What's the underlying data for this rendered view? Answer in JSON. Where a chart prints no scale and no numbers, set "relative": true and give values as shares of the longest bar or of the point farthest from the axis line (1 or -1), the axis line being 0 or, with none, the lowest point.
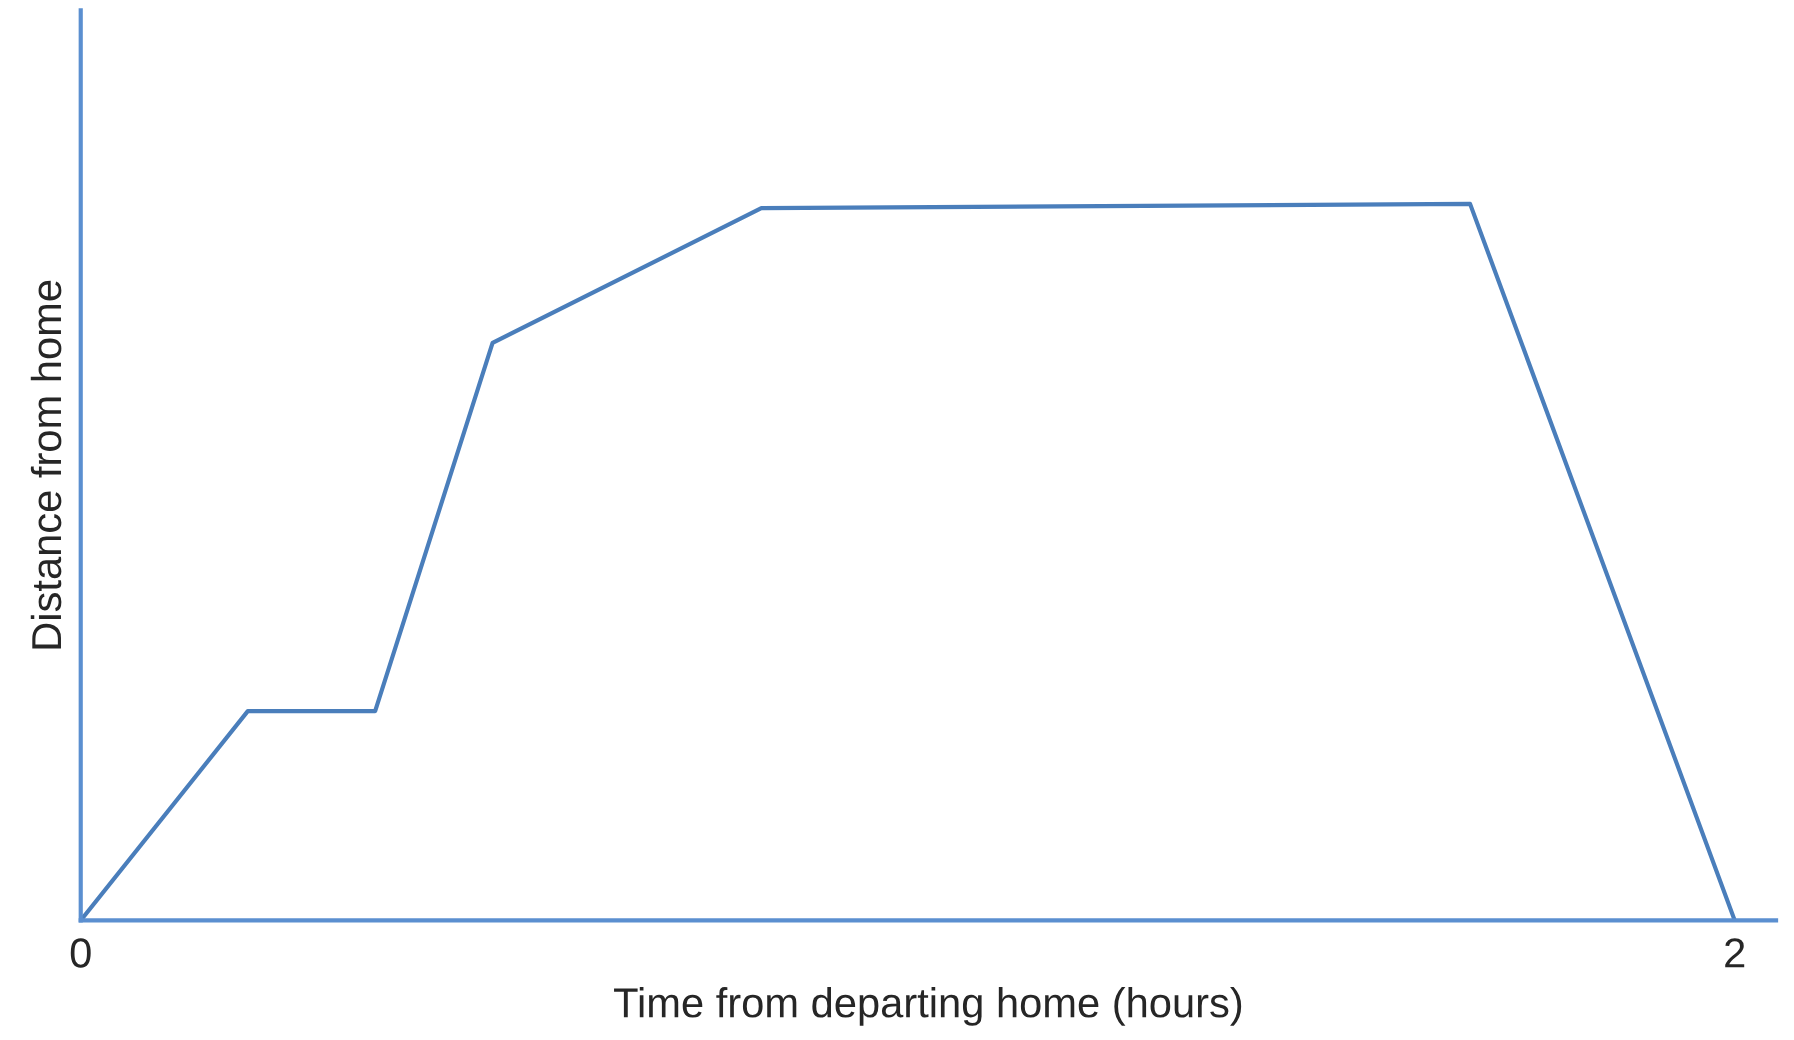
{
  "chart_data": {
    "type": "line",
    "xlabel": "Time from departing home (hours)",
    "ylabel": "Distance from home",
    "relative": true,
    "tick_labels": "x",
    "x": [
      0,
      0.202,
      0.356,
      0.498,
      0.823,
      1.68,
      2
    ],
    "series": [
      {
        "color": "#4a7ebb",
        "values": [
          0,
          0.292,
          0.292,
          0.806,
          0.994,
          1.0,
          0
        ]
      }
    ],
    "xlim": [
      0,
      2.05
    ],
    "xticks": [
      0,
      2
    ],
    "grid": false,
    "legend": false,
    "marker": "none",
    "line_style": "solid"
  }
}
